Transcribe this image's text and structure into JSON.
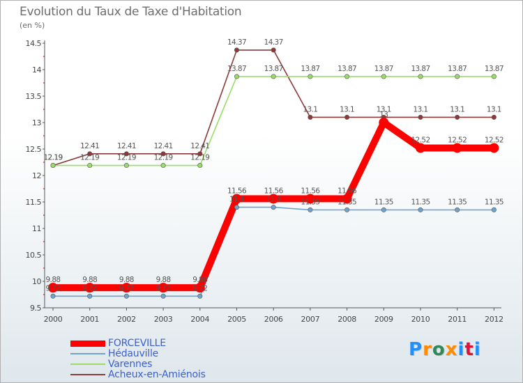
{
  "title": "Evolution du Taux de Taxe d'Habitation",
  "subtitle": "(en %)",
  "logo": {
    "text": "Proxiti",
    "colors": [
      "#1e90ff",
      "#ff8c00",
      "#2e8b57",
      "#ff8c00",
      "#1e90ff",
      "#dc143c",
      "#1e90ff"
    ]
  },
  "chart_data": {
    "type": "line",
    "title": "Evolution du Taux de Taxe d'Habitation",
    "subtitle": "(en %)",
    "xlabel": "",
    "ylabel": "",
    "x": [
      "2000",
      "2001",
      "2002",
      "2003",
      "2004",
      "2005",
      "2006",
      "2007",
      "2008",
      "2009",
      "2010",
      "2011",
      "2012"
    ],
    "ylim": [
      9.5,
      14.5
    ],
    "yticks": [
      "9.5",
      "10",
      "10.5",
      "11",
      "11.5",
      "12",
      "12.5",
      "13",
      "13.5",
      "14",
      "14.5"
    ],
    "grid": false,
    "legend_position": "bottom-left",
    "series": [
      {
        "name": "FORCEVILLE",
        "color": "#ff0000",
        "values": [
          9.88,
          9.88,
          9.88,
          9.88,
          9.88,
          11.56,
          11.56,
          11.56,
          11.56,
          13,
          12.52,
          12.52,
          12.52
        ],
        "labels": [
          "9.88",
          "9.88",
          "9.88",
          "9.88",
          "9.88",
          "11.56",
          "11.56",
          "11.56",
          "11.56",
          "13",
          "12.52",
          "12.52",
          "12.52"
        ]
      },
      {
        "name": "Hédauville",
        "color": "#6fa3cc",
        "values": [
          9.72,
          9.72,
          9.72,
          9.72,
          9.72,
          11.4,
          11.4,
          11.35,
          11.35,
          11.35,
          11.35,
          11.35,
          11.35
        ],
        "labels": [
          "9.72",
          "9.72",
          "9.72",
          "9.72",
          "9.72",
          "11.4",
          "11.4",
          "11.35",
          "11.35",
          "11.35",
          "11.35",
          "11.35",
          "11.35"
        ]
      },
      {
        "name": "Varennes",
        "color": "#99dd66",
        "values": [
          12.19,
          12.19,
          12.19,
          12.19,
          12.19,
          13.87,
          13.87,
          13.87,
          13.87,
          13.87,
          13.87,
          13.87,
          13.87
        ],
        "labels": [
          "12.19",
          "12.19",
          "12.19",
          "12.19",
          "12.19",
          "13.87",
          "13.87",
          "13.87",
          "13.87",
          "13.87",
          "13.87",
          "13.87",
          "13.87"
        ]
      },
      {
        "name": "Acheux-en-Amiénois",
        "color": "#8b3a3a",
        "values": [
          12.19,
          12.41,
          12.41,
          12.41,
          12.41,
          14.37,
          14.37,
          13.1,
          13.1,
          13.1,
          13.1,
          13.1,
          13.1
        ],
        "labels": [
          "12.19",
          "12.41",
          "12.41",
          "12.41",
          "12.41",
          "14.37",
          "14.37",
          "13.1",
          "13.1",
          "13.1",
          "13.1",
          "13.1",
          "13.1"
        ]
      }
    ]
  }
}
